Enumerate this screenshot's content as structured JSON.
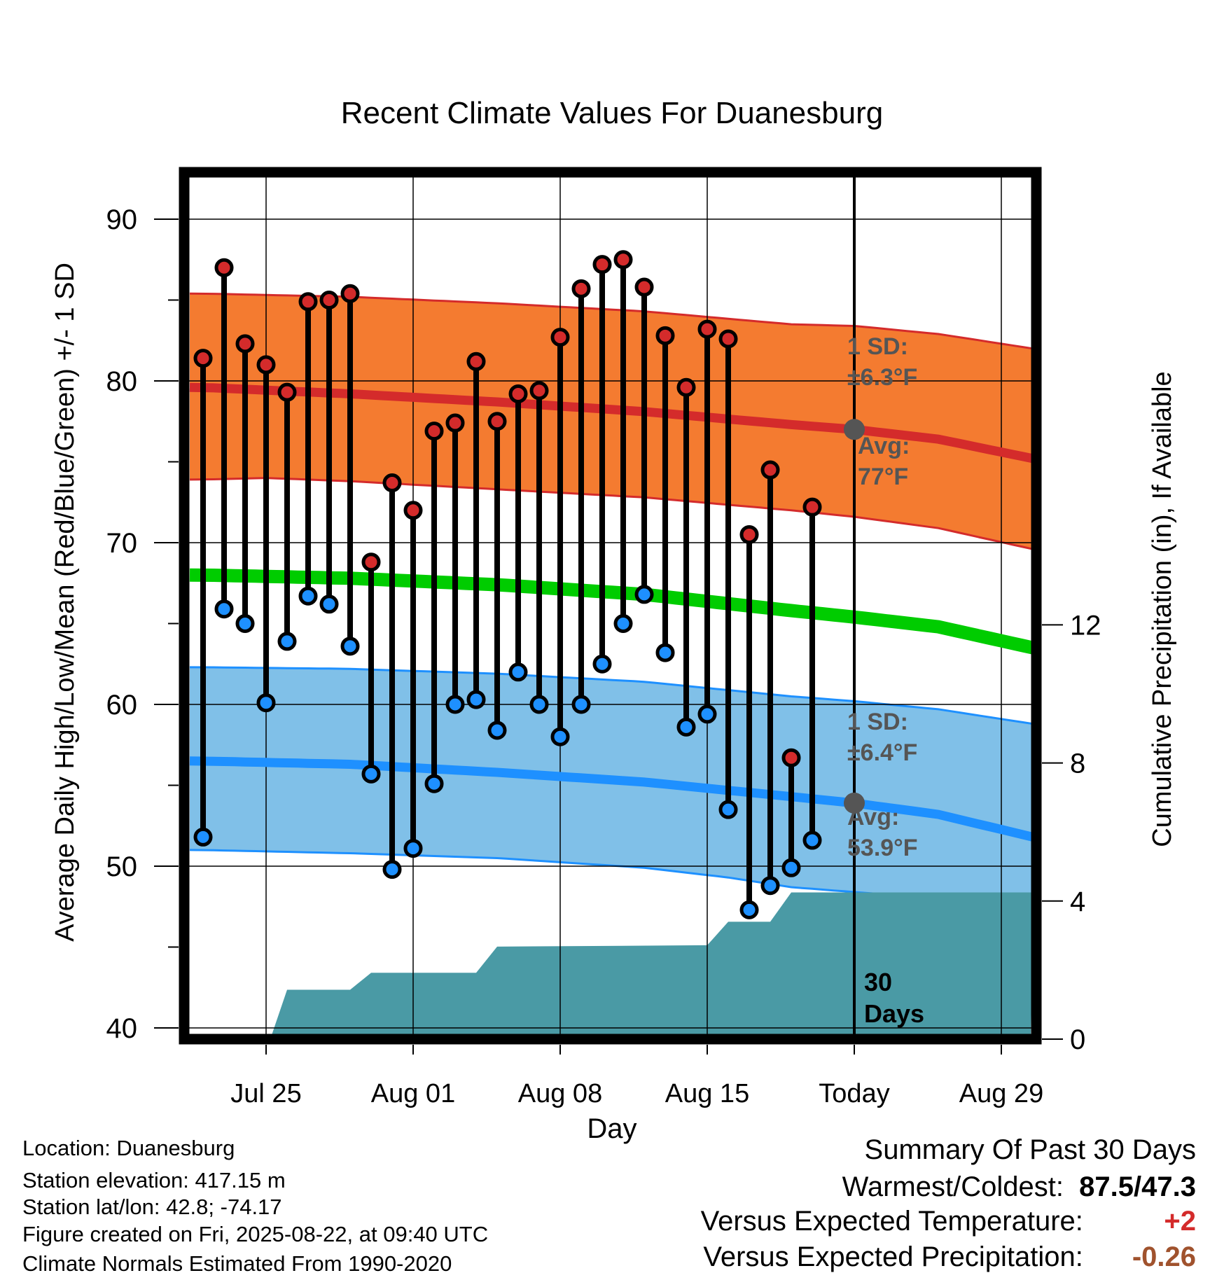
{
  "chart_data": {
    "type": "line",
    "title": "Recent Climate Values For Duanesburg",
    "xlabel": "Day",
    "ylabel": "Average Daily High/Low/Mean (Red/Blue/Green) +/- 1 SD",
    "y2label": "Cumulative Precipitation (in), If Available",
    "ylim": [
      40,
      92
    ],
    "y2lim": [
      0,
      18
    ],
    "y_ticks": [
      "40",
      "50",
      "60",
      "70",
      "80",
      "90"
    ],
    "y2_ticks": [
      "0",
      "4",
      "8",
      "12"
    ],
    "x_ticks": [
      {
        "label": "Jul 25",
        "day": 25
      },
      {
        "label": "Aug 01",
        "day": 32
      },
      {
        "label": "Aug 08",
        "day": 39
      },
      {
        "label": "Aug 15",
        "day": 46
      },
      {
        "label": "Today",
        "day": 53
      },
      {
        "label": "Aug 29",
        "day": 60
      }
    ],
    "today_day": 53,
    "today_label": [
      "30",
      "Days"
    ],
    "highs": [
      {
        "day": 22,
        "value": 81.4
      },
      {
        "day": 23,
        "value": 87.0
      },
      {
        "day": 24,
        "value": 82.3
      },
      {
        "day": 25,
        "value": 81.0
      },
      {
        "day": 26,
        "value": 79.3
      },
      {
        "day": 27,
        "value": 84.9
      },
      {
        "day": 28,
        "value": 85.0
      },
      {
        "day": 29,
        "value": 85.4
      },
      {
        "day": 30,
        "value": 68.8
      },
      {
        "day": 31,
        "value": 73.7
      },
      {
        "day": 32,
        "value": 72.0
      },
      {
        "day": 33,
        "value": 76.9
      },
      {
        "day": 34,
        "value": 77.4
      },
      {
        "day": 35,
        "value": 81.2
      },
      {
        "day": 36,
        "value": 77.5
      },
      {
        "day": 37,
        "value": 79.2
      },
      {
        "day": 38,
        "value": 79.4
      },
      {
        "day": 39,
        "value": 82.7
      },
      {
        "day": 40,
        "value": 85.7
      },
      {
        "day": 41,
        "value": 87.2
      },
      {
        "day": 42,
        "value": 87.5
      },
      {
        "day": 43,
        "value": 85.8
      },
      {
        "day": 44,
        "value": 82.8
      },
      {
        "day": 45,
        "value": 79.6
      },
      {
        "day": 46,
        "value": 83.2
      },
      {
        "day": 47,
        "value": 82.6
      },
      {
        "day": 48,
        "value": 70.5
      },
      {
        "day": 49,
        "value": 74.5
      },
      {
        "day": 50,
        "value": 56.7
      },
      {
        "day": 51,
        "value": 72.2
      }
    ],
    "lows": [
      {
        "day": 22,
        "value": 51.8
      },
      {
        "day": 23,
        "value": 65.9
      },
      {
        "day": 24,
        "value": 65.0
      },
      {
        "day": 25,
        "value": 60.1
      },
      {
        "day": 26,
        "value": 63.9
      },
      {
        "day": 27,
        "value": 66.7
      },
      {
        "day": 28,
        "value": 66.2
      },
      {
        "day": 29,
        "value": 63.6
      },
      {
        "day": 30,
        "value": 55.7
      },
      {
        "day": 31,
        "value": 49.8
      },
      {
        "day": 32,
        "value": 51.1
      },
      {
        "day": 33,
        "value": 55.1
      },
      {
        "day": 34,
        "value": 60.0
      },
      {
        "day": 35,
        "value": 60.3
      },
      {
        "day": 36,
        "value": 58.4
      },
      {
        "day": 37,
        "value": 62.0
      },
      {
        "day": 38,
        "value": 60.0
      },
      {
        "day": 39,
        "value": 58.0
      },
      {
        "day": 40,
        "value": 60.0
      },
      {
        "day": 41,
        "value": 62.5
      },
      {
        "day": 42,
        "value": 65.0
      },
      {
        "day": 43,
        "value": 66.8
      },
      {
        "day": 44,
        "value": 63.2
      },
      {
        "day": 45,
        "value": 58.6
      },
      {
        "day": 46,
        "value": 59.4
      },
      {
        "day": 47,
        "value": 53.5
      },
      {
        "day": 48,
        "value": 47.3
      },
      {
        "day": 49,
        "value": 48.8
      },
      {
        "day": 50,
        "value": 49.9
      },
      {
        "day": 51,
        "value": 51.6
      }
    ],
    "normal_high": {
      "x": [
        22,
        29,
        36,
        43,
        50,
        53,
        57,
        61.5
      ],
      "y": [
        79.6,
        79.2,
        78.7,
        78.1,
        77.3,
        77.0,
        76.4,
        75.2
      ]
    },
    "normal_high_band": {
      "upper": {
        "x": [
          22,
          29,
          36,
          43,
          50,
          53,
          57,
          61.5
        ],
        "y": [
          85.4,
          85.2,
          84.8,
          84.3,
          83.5,
          83.4,
          82.9,
          82.0
        ]
      },
      "lower": {
        "x": [
          22,
          25,
          29,
          36,
          43,
          50,
          53,
          57,
          61.5
        ],
        "y": [
          73.9,
          74.0,
          73.8,
          73.3,
          72.8,
          72.0,
          71.6,
          70.9,
          69.6
        ]
      }
    },
    "normal_mean": {
      "x": [
        22,
        29,
        36,
        43,
        50,
        53,
        57,
        61.5
      ],
      "y": [
        68.0,
        67.8,
        67.4,
        66.8,
        65.8,
        65.4,
        64.8,
        63.5
      ]
    },
    "normal_low": {
      "x": [
        22,
        29,
        36,
        43,
        50,
        53,
        57,
        61.5
      ],
      "y": [
        56.5,
        56.3,
        55.8,
        55.2,
        54.3,
        53.9,
        53.2,
        51.8
      ]
    },
    "normal_low_band": {
      "upper": {
        "x": [
          22,
          29,
          36,
          43,
          50,
          53,
          57,
          61.5
        ],
        "y": [
          62.3,
          62.2,
          61.9,
          61.4,
          60.5,
          60.2,
          59.7,
          58.8
        ]
      },
      "lower": {
        "x": [
          22,
          29,
          36,
          43,
          47,
          50,
          53,
          57,
          61.5
        ],
        "y": [
          51.0,
          50.8,
          50.5,
          49.9,
          49.3,
          48.7,
          48.4,
          48.0,
          47.5
        ]
      }
    },
    "precip_cumulative": {
      "x": [
        22,
        25.2,
        26.0,
        29.0,
        30.0,
        35.0,
        36.0,
        46.0,
        47.0,
        49.0,
        50.0,
        61.5
      ],
      "y": [
        0,
        0,
        1.43,
        1.43,
        1.92,
        1.92,
        2.68,
        2.72,
        3.4,
        3.4,
        4.25,
        4.25
      ]
    },
    "annotations": {
      "high_sd_label": [
        "1 SD:",
        "±6.3°F"
      ],
      "high_avg_label": [
        "Avg:",
        "77°F"
      ],
      "low_sd_label": [
        "1 SD:",
        "±6.4°F"
      ],
      "low_avg_label": [
        "Avg:",
        "53.9°F"
      ]
    },
    "colors": {
      "high_band": "#f47b30",
      "high_line": "#d42b2b",
      "mean_line": "#00cc00",
      "low_band": "#80c0e8",
      "low_line": "#1e90ff",
      "precip": "#4a9aa5",
      "high_dot": "#d42b2b",
      "low_dot": "#1e90ff",
      "annotation": "#555555"
    }
  },
  "info": {
    "location": "Location: Duanesburg",
    "elevation": "Station elevation: 417.15 m",
    "latlon": "Station lat/lon: 42.8; -74.17",
    "created": "Figure created on Fri, 2025-08-22, at 09:40 UTC",
    "normals": "Climate Normals Estimated From 1990-2020"
  },
  "summary": {
    "heading": "Summary Of Past 30 Days",
    "warmest_label": "Warmest/Coldest:",
    "warmest_value": "87.5/47.3",
    "temp_label": "Versus Expected Temperature:",
    "temp_value": "+2",
    "temp_color": "#d42b2b",
    "precip_label": "Versus Expected Precipitation:",
    "precip_value": "-0.26",
    "precip_color": "#a0522d"
  }
}
